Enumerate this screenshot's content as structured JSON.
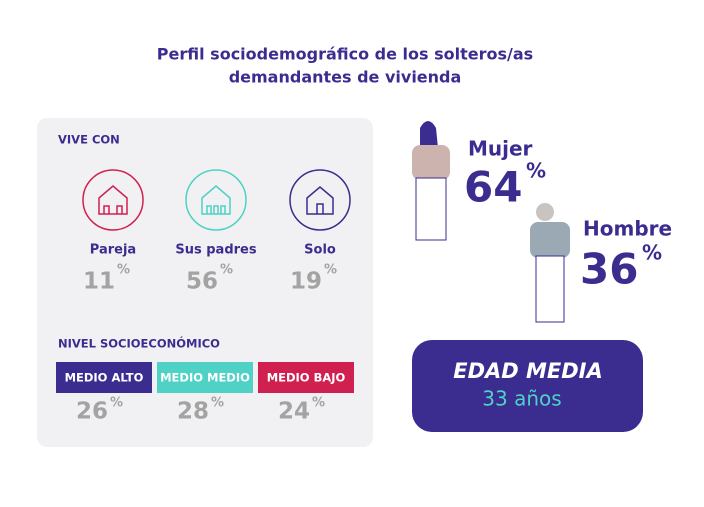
{
  "header": {
    "title_lines": [
      "Perfil sociodemográfico de los solteros/as",
      "demandantes de vivienda"
    ]
  },
  "vive_con": {
    "label": "VIVE CON",
    "items": [
      {
        "label": "Pareja",
        "value": 11,
        "unit": "%"
      },
      {
        "label": "Sus padres",
        "value": 56,
        "unit": "%"
      },
      {
        "label": "Solo",
        "value": 19,
        "unit": "%"
      }
    ]
  },
  "nivel": {
    "label": "NIVEL SOCIOECONÓMICO",
    "items": [
      {
        "label": "MEDIO ALTO",
        "value": 26,
        "unit": "%"
      },
      {
        "label": "MEDIO MEDIO",
        "value": 28,
        "unit": "%"
      },
      {
        "label": "MEDIO BAJO",
        "value": 24,
        "unit": "%"
      }
    ]
  },
  "gender": [
    {
      "label": "Mujer",
      "value": 64,
      "unit": "%"
    },
    {
      "label": "Hombre",
      "value": 36,
      "unit": "%"
    }
  ],
  "edad": {
    "label": "EDAD MEDIA",
    "value": "33 años"
  }
}
